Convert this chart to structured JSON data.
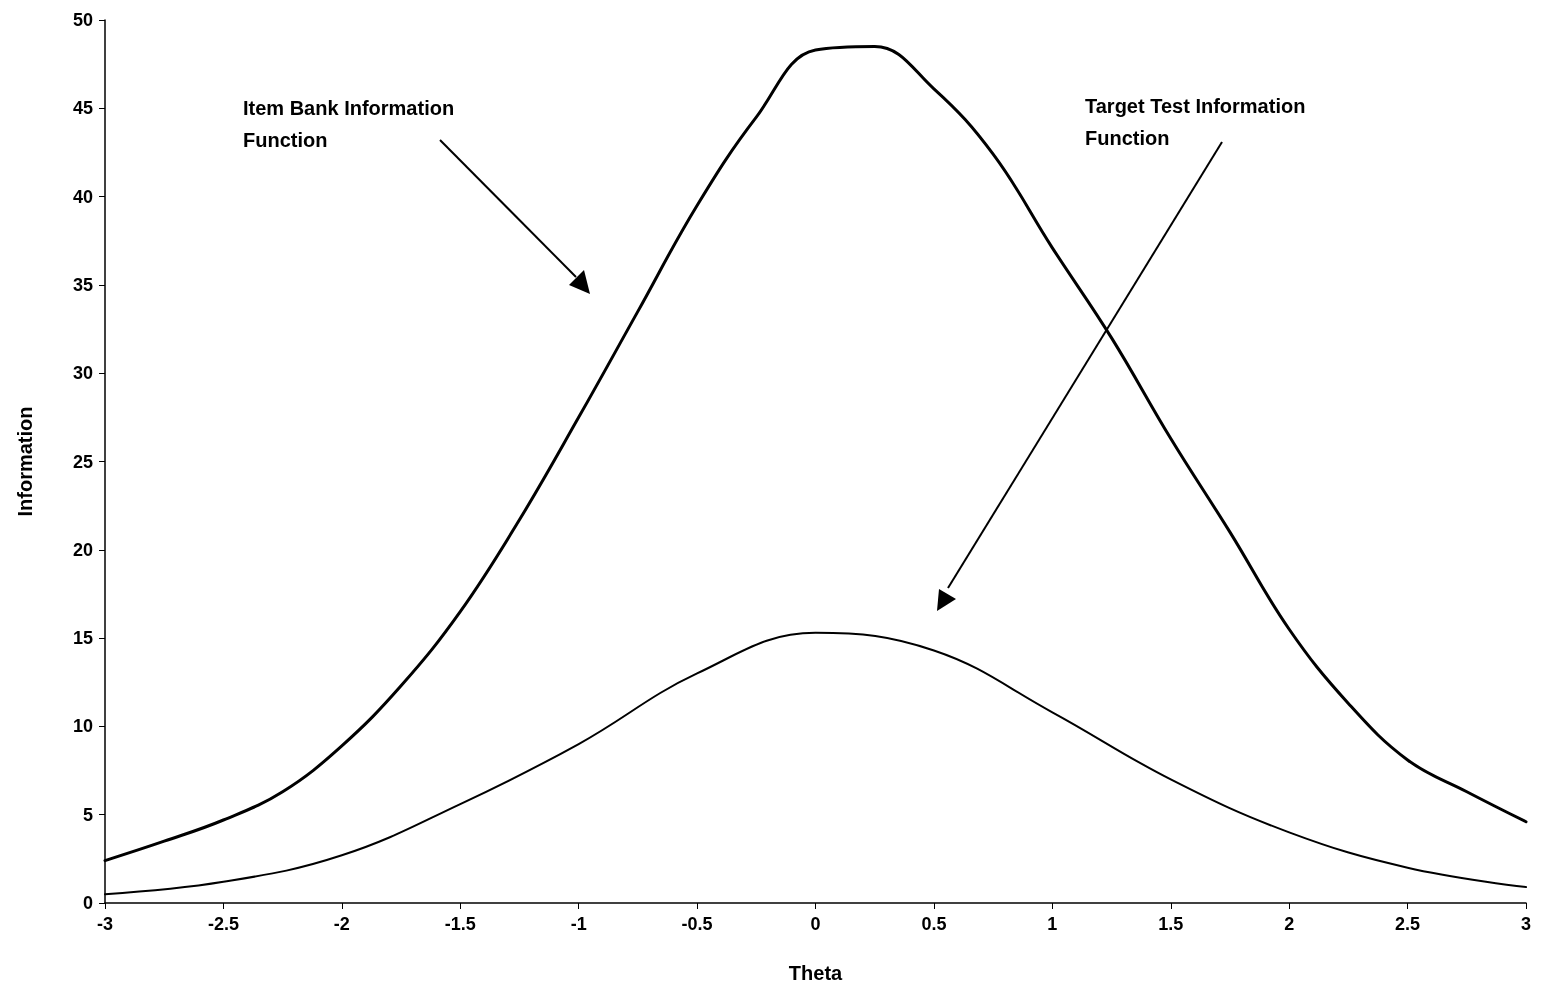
{
  "chart_data": {
    "type": "line",
    "xlabel": "Theta",
    "ylabel": "Information",
    "series": [
      {
        "color": "#000000",
        "x": [
          -3,
          -2.75,
          -2.5,
          -2.25,
          -2,
          -1.75,
          -1.5,
          -1.25,
          -1,
          -0.75,
          -0.5,
          -0.25,
          0,
          0.25,
          0.5,
          0.75,
          1,
          1.25,
          1.5,
          1.75,
          2,
          2.25,
          2.5,
          2.75,
          3
        ],
        "values": [
          2.4,
          3.5,
          4.7,
          6.3,
          8.9,
          12.3,
          16.5,
          21.7,
          27.5,
          33.5,
          39.5,
          44.5,
          48.3,
          48.5,
          46.1,
          42.4,
          37.1,
          32.0,
          26.3,
          21.0,
          15.5,
          11.3,
          8.1,
          6.3,
          4.6
        ]
      },
      {
        "color": "#000000",
        "x": [
          -3,
          -2.5,
          -2,
          -1.5,
          -1,
          -0.5,
          0,
          0.5,
          1,
          1.5,
          2,
          2.5,
          3
        ],
        "values": [
          0.5,
          1.2,
          2.7,
          5.6,
          9.0,
          13.0,
          15.3,
          14.3,
          10.8,
          7.0,
          4.0,
          2.0,
          0.9
        ]
      }
    ],
    "xlim": [
      -3,
      3
    ],
    "xticks": [
      -3,
      -2.5,
      -2,
      -1.5,
      -1,
      -0.5,
      0,
      0.5,
      1,
      1.5,
      2,
      2.5,
      3
    ],
    "ylim": [
      0,
      50
    ],
    "yticks": [
      0,
      5,
      10,
      15,
      20,
      25,
      30,
      35,
      40,
      45,
      50
    ],
    "marker": "none",
    "line_style": "solid",
    "annotations": [
      "Item Bank Information\nFunction",
      "Target Test Information\nFunction"
    ]
  }
}
